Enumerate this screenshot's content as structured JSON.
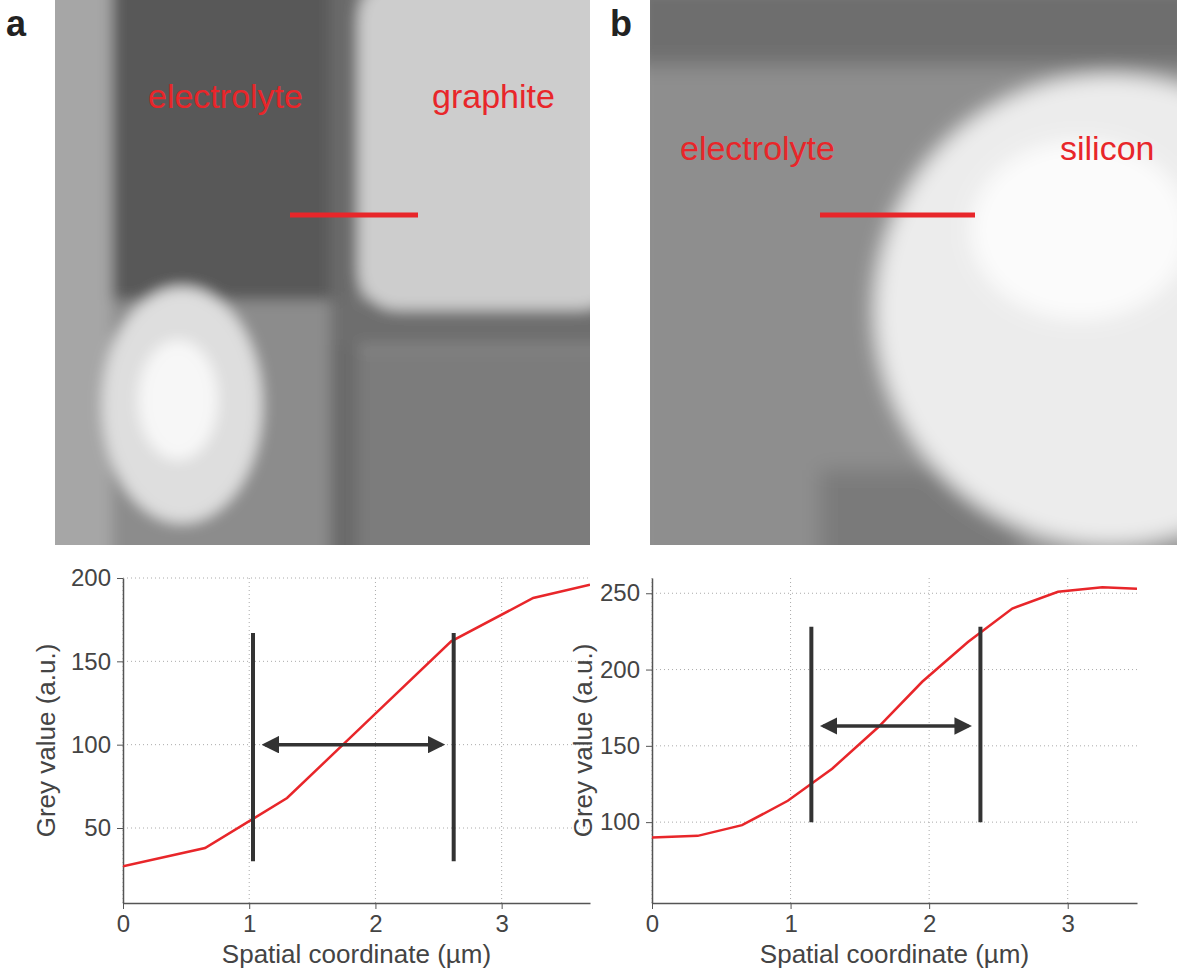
{
  "chart_data": [
    {
      "type": "line",
      "label": "a",
      "image_labels": [
        "electrolyte",
        "graphite"
      ],
      "xlabel": "Spatial coordinate (µm)",
      "ylabel": "Grey value (a.u.)",
      "x": [
        0,
        0.65,
        1.3,
        1.95,
        2.6,
        3.25,
        3.7
      ],
      "values": [
        27,
        38,
        68,
        115,
        162,
        188,
        196
      ],
      "color": "#e8262a",
      "xlim": [
        0,
        3.7
      ],
      "xticks": [
        0,
        1,
        2,
        3
      ],
      "ylim": [
        5,
        200
      ],
      "yticks": [
        50,
        100,
        150,
        200
      ],
      "grid": true,
      "bounds": {
        "x": [
          1.03,
          2.62
        ],
        "y": [
          30,
          167
        ]
      },
      "arrow_y": 100
    },
    {
      "type": "line",
      "label": "b",
      "image_labels": [
        "electrolyte",
        "silicon"
      ],
      "xlabel": "Spatial coordinate (µm)",
      "ylabel": "Grey value (a.u.)",
      "x": [
        0,
        0.33,
        0.65,
        0.98,
        1.3,
        1.63,
        1.95,
        2.28,
        2.6,
        2.93,
        3.25,
        3.5
      ],
      "values": [
        90,
        91,
        98,
        114,
        135,
        162,
        192,
        218,
        240,
        251,
        254,
        253
      ],
      "color": "#e8262a",
      "xlim": [
        0,
        3.5
      ],
      "xticks": [
        0,
        1,
        2,
        3
      ],
      "ylim": [
        47,
        260
      ],
      "yticks": [
        100,
        150,
        200,
        250
      ],
      "grid": true,
      "bounds": {
        "x": [
          1.15,
          2.37
        ],
        "y": [
          100,
          228
        ]
      },
      "arrow_y": 163
    }
  ]
}
